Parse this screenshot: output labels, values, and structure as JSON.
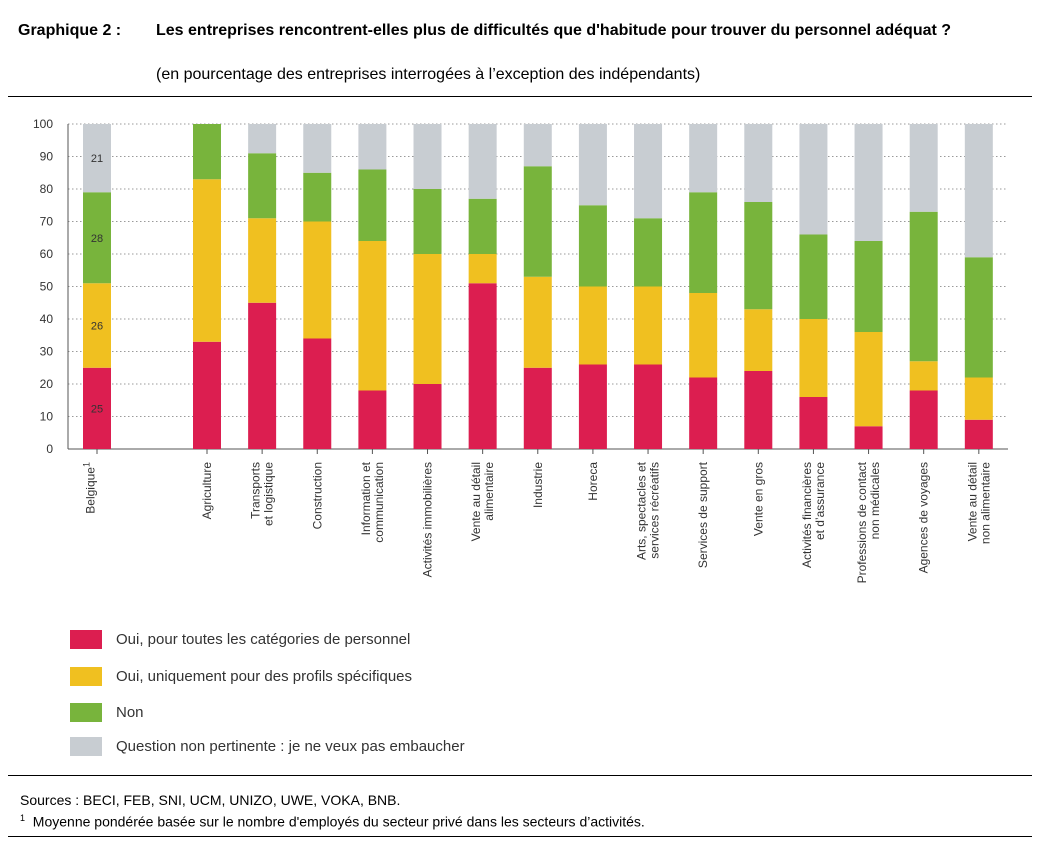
{
  "header": {
    "label": "Graphique 2 :",
    "title": "Les entreprises rencontrent-elles plus de difficultés que d'habitude pour trouver du personnel adéquat ?",
    "subtitle": "(en pourcentage des entreprises interrogées à l’exception des indépendants)"
  },
  "footer": {
    "sources": "Sources : BECI, FEB, SNI, UCM, UNIZO, UWE, VOKA, BNB.",
    "note_marker": "1",
    "note_text": "Moyenne pondérée basée sur le nombre d'employés du secteur privé dans les secteurs d’activités."
  },
  "chart_data": {
    "type": "bar",
    "stacked": true,
    "ylim": [
      0,
      100
    ],
    "yticks": [
      0,
      10,
      20,
      30,
      40,
      50,
      60,
      70,
      80,
      90,
      100
    ],
    "grid": true,
    "legend_position": "bottom-left",
    "categories": [
      [
        "Belgique",
        "1"
      ],
      [
        "Agriculture"
      ],
      [
        "Transports",
        "et logistique"
      ],
      [
        "Construction"
      ],
      [
        "Information et",
        "communication"
      ],
      [
        "Activités immobilières"
      ],
      [
        "Vente au détail",
        "alimentaire"
      ],
      [
        "Industrie"
      ],
      [
        "Horeca"
      ],
      [
        "Arts, spectacles et",
        "services récréatifs"
      ],
      [
        "Services de support"
      ],
      [
        "Vente en gros"
      ],
      [
        "Activités financières",
        "et d’assurance"
      ],
      [
        "Professions de contact",
        "non médicales"
      ],
      [
        "Agences de voyages"
      ],
      [
        "Vente au détail",
        "non alimentaire"
      ]
    ],
    "series": [
      {
        "name": "Oui, pour toutes les catégories de personnel",
        "color": "#dc1e50",
        "values": [
          25,
          33,
          45,
          34,
          18,
          20,
          51,
          25,
          26,
          26,
          22,
          24,
          16,
          7,
          18,
          9
        ]
      },
      {
        "name": "Oui, uniquement pour des profils spécifiques",
        "color": "#f0c020",
        "values": [
          26,
          50,
          26,
          36,
          46,
          40,
          9,
          28,
          24,
          24,
          26,
          19,
          24,
          29,
          9,
          13
        ]
      },
      {
        "name": "Non",
        "color": "#78b43c",
        "values": [
          28,
          17,
          20,
          15,
          22,
          20,
          17,
          34,
          25,
          21,
          31,
          33,
          26,
          28,
          46,
          37
        ]
      },
      {
        "name": "Question non pertinente : je ne veux pas embaucher",
        "color": "#c8cdd2",
        "values": [
          21,
          0,
          9,
          15,
          14,
          20,
          23,
          13,
          25,
          29,
          21,
          24,
          34,
          36,
          27,
          41
        ]
      }
    ],
    "data_labels": {
      "category_index": 0,
      "values": [
        25,
        26,
        28,
        21
      ]
    }
  }
}
